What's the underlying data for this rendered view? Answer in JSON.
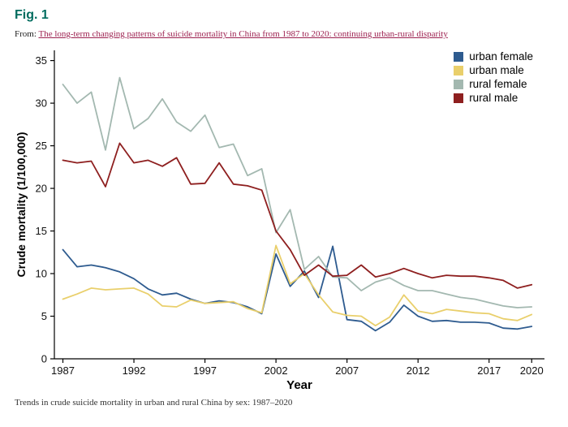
{
  "page": {
    "figure_label": "Fig. 1",
    "from_prefix": "From:",
    "source_link": "The long-term changing patterns of suicide mortality in China from 1987 to 2020: continuing urban-rural disparity",
    "caption": "Trends in crude suicide mortality in urban and rural China by sex: 1987–2020"
  },
  "colors": {
    "figure_label": "#006c5f",
    "link": "#9d2150",
    "axis": "#000000"
  },
  "chart_data": {
    "type": "line",
    "title": "",
    "xlabel": "Year",
    "ylabel": "Crude mortality (1/100,000)",
    "grid": false,
    "legend_position": "top-right",
    "xlim": [
      1986.4,
      2020.9
    ],
    "ylim": [
      0,
      36.2
    ],
    "xticks": [
      1987,
      1992,
      1997,
      2002,
      2007,
      2012,
      2017,
      2020
    ],
    "yticks": [
      0,
      5,
      10,
      15,
      20,
      25,
      30,
      35
    ],
    "x": [
      1987,
      1988,
      1989,
      1990,
      1991,
      1992,
      1993,
      1994,
      1995,
      1996,
      1997,
      1998,
      1999,
      2000,
      2001,
      2002,
      2003,
      2004,
      2005,
      2006,
      2007,
      2008,
      2009,
      2010,
      2011,
      2012,
      2013,
      2014,
      2015,
      2016,
      2017,
      2018,
      2019,
      2020
    ],
    "series": [
      {
        "name": "urban female",
        "color": "#2e5b8f",
        "values": [
          12.8,
          10.8,
          11.0,
          10.7,
          10.2,
          9.4,
          8.2,
          7.5,
          7.7,
          7.0,
          6.5,
          6.8,
          6.6,
          6.1,
          5.3,
          12.3,
          8.5,
          10.3,
          7.2,
          13.2,
          4.6,
          4.4,
          3.3,
          4.3,
          6.3,
          5.0,
          4.4,
          4.5,
          4.3,
          4.3,
          4.2,
          3.6,
          3.5,
          3.8
        ]
      },
      {
        "name": "urban male",
        "color": "#e9cf6b",
        "values": [
          7.0,
          7.6,
          8.3,
          8.1,
          8.2,
          8.3,
          7.6,
          6.2,
          6.1,
          6.9,
          6.5,
          6.6,
          6.7,
          5.9,
          5.4,
          13.3,
          8.8,
          10.0,
          7.5,
          5.5,
          5.1,
          5.0,
          3.9,
          4.9,
          7.5,
          5.6,
          5.3,
          5.8,
          5.6,
          5.4,
          5.3,
          4.7,
          4.5,
          5.2
        ]
      },
      {
        "name": "rural female",
        "color": "#a3b8b0",
        "values": [
          32.2,
          30.0,
          31.3,
          24.5,
          33.0,
          27.0,
          28.2,
          30.5,
          27.8,
          26.7,
          28.6,
          24.8,
          25.2,
          21.5,
          22.3,
          14.8,
          17.5,
          10.5,
          12.0,
          9.6,
          9.5,
          8.0,
          9.0,
          9.5,
          8.6,
          8.0,
          8.0,
          7.6,
          7.2,
          7.0,
          6.6,
          6.2,
          6.0,
          6.1
        ]
      },
      {
        "name": "rural male",
        "color": "#8e1f1f",
        "values": [
          23.3,
          23.0,
          23.2,
          20.2,
          25.3,
          23.0,
          23.3,
          22.6,
          23.6,
          20.5,
          20.6,
          23.0,
          20.5,
          20.3,
          19.8,
          15.0,
          12.8,
          9.8,
          11.0,
          9.7,
          9.8,
          11.0,
          9.6,
          10.0,
          10.6,
          10.0,
          9.5,
          9.8,
          9.7,
          9.7,
          9.5,
          9.2,
          8.3,
          8.7
        ]
      }
    ]
  }
}
